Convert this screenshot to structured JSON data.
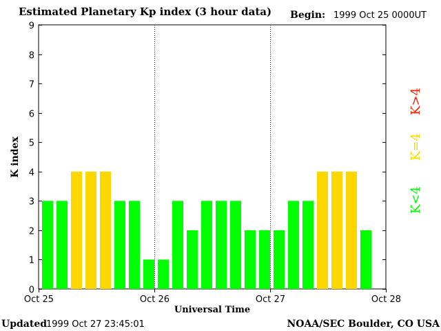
{
  "chart_data": {
    "type": "bar",
    "title": "Estimated Planetary Kp index (3 hour data)",
    "begin_label": "Begin:",
    "begin_value": "1999 Oct 25 0000UT",
    "xlabel": "Universal Time",
    "ylabel": "K index",
    "ylim": [
      0,
      9
    ],
    "yticks": [
      "0",
      "1",
      "2",
      "3",
      "4",
      "5",
      "6",
      "7",
      "8",
      "9"
    ],
    "xticks": [
      "Oct 25",
      "Oct 26",
      "Oct 27",
      "Oct 28"
    ],
    "values": [
      3,
      3,
      4,
      4,
      4,
      3,
      3,
      1,
      1,
      3,
      2,
      3,
      3,
      3,
      2,
      2,
      2,
      3,
      3,
      4,
      4,
      4,
      2
    ],
    "grid": "dotted day dividers",
    "legend": [
      {
        "label": "K<4",
        "color": "#00ff00"
      },
      {
        "label": "K=4",
        "color": "#ffd700"
      },
      {
        "label": "K>4",
        "color": "#ff2000"
      }
    ],
    "legend_position": "right, vertical",
    "colors": {
      "low": "#00ff00",
      "equal": "#ffd700",
      "high": "#ff2000"
    }
  },
  "footer": {
    "updated_label": "Updated",
    "updated_value": "1999 Oct 27 23:45:01",
    "source": "NOAA/SEC Boulder, CO USA"
  }
}
